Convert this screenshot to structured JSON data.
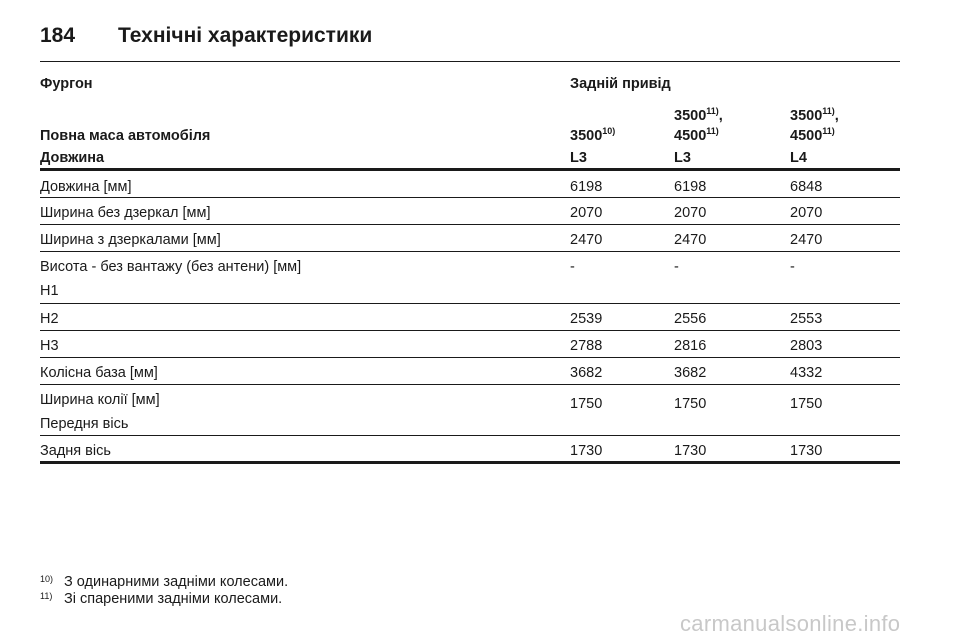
{
  "header": {
    "page_number": "184",
    "title": "Технічні характеристики"
  },
  "table": {
    "group_label": "Фургон",
    "drive_label": "Задній привід",
    "mass_label": "Повна маса автомобіля",
    "mass_columns": [
      {
        "line1": "",
        "line1_sup": "",
        "line1_suffix": "",
        "line2": "3500",
        "line2_sup": "10)"
      },
      {
        "line1": "3500",
        "line1_sup": "11)",
        "line1_suffix": ",",
        "line2": "4500",
        "line2_sup": "11)"
      },
      {
        "line1": "3500",
        "line1_sup": "11)",
        "line1_suffix": ",",
        "line2": "4500",
        "line2_sup": "11)"
      }
    ],
    "length_label": "Довжина",
    "length_codes": [
      "L3",
      "L3",
      "L4"
    ],
    "rows": [
      {
        "label": "Довжина [мм]",
        "sublabel": "",
        "values": [
          "6198",
          "6198",
          "6848"
        ]
      },
      {
        "label": "Ширина без дзеркал [мм]",
        "sublabel": "",
        "values": [
          "2070",
          "2070",
          "2070"
        ]
      },
      {
        "label": "Ширина з дзеркалами [мм]",
        "sublabel": "",
        "values": [
          "2470",
          "2470",
          "2470"
        ]
      },
      {
        "label": "Висота - без вантажу (без антени) [мм]",
        "sublabel": "H1",
        "values": [
          "-",
          "-",
          "-"
        ]
      },
      {
        "label": "H2",
        "sublabel": "",
        "values": [
          "2539",
          "2556",
          "2553"
        ]
      },
      {
        "label": "H3",
        "sublabel": "",
        "values": [
          "2788",
          "2816",
          "2803"
        ]
      },
      {
        "label": "Колісна база [мм]",
        "sublabel": "",
        "values": [
          "3682",
          "3682",
          "4332"
        ]
      },
      {
        "label": "Ширина колії [мм]",
        "sublabel": "Передня вісь",
        "values": [
          "1750",
          "1750",
          "1750"
        ]
      },
      {
        "label": "Задня вісь",
        "sublabel": "",
        "values": [
          "1730",
          "1730",
          "1730"
        ]
      }
    ]
  },
  "footnotes": [
    {
      "mark": "10)",
      "text": "З одинарними задніми колесами."
    },
    {
      "mark": "11)",
      "text": "Зі спареними задніми колесами."
    }
  ],
  "watermark": "carmanualsonline.info"
}
